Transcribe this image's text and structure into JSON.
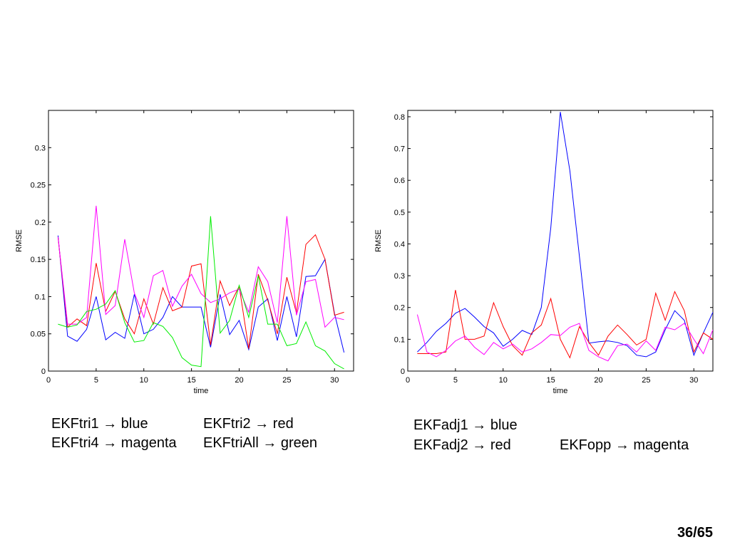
{
  "chart_data": [
    {
      "type": "line",
      "title": "",
      "xlabel": "time",
      "ylabel": "RMSE",
      "xlim": [
        0,
        32
      ],
      "ylim": [
        0,
        0.35
      ],
      "xticks": [
        0,
        5,
        10,
        15,
        20,
        25,
        30
      ],
      "yticks": [
        0,
        0.05,
        0.1,
        0.15,
        0.2,
        0.25,
        0.3
      ],
      "xtick_labels": [
        "0",
        "5",
        "10",
        "15",
        "20",
        "25",
        "30"
      ],
      "ytick_labels": [
        "0",
        "0.05",
        "0.1",
        "0.15",
        "0.2",
        "0.25",
        "0.3"
      ],
      "grid": false,
      "legend": "none",
      "x": [
        1,
        2,
        3,
        4,
        5,
        6,
        7,
        8,
        9,
        10,
        11,
        12,
        13,
        14,
        15,
        16,
        17,
        18,
        19,
        20,
        21,
        22,
        23,
        24,
        25,
        26,
        27,
        28,
        29,
        30,
        31
      ],
      "series": [
        {
          "color": "#0000ff",
          "values": [
            0.182,
            0.047,
            0.04,
            0.056,
            0.1,
            0.042,
            0.052,
            0.044,
            0.103,
            0.05,
            0.056,
            0.072,
            0.1,
            0.086,
            0.086,
            0.086,
            0.032,
            0.103,
            0.049,
            0.068,
            0.029,
            0.086,
            0.097,
            0.041,
            0.1,
            0.046,
            0.127,
            0.128,
            0.15,
            0.077,
            0.025
          ]
        },
        {
          "color": "#ff0000",
          "values": [
            0.18,
            0.059,
            0.07,
            0.061,
            0.145,
            0.08,
            0.107,
            0.07,
            0.05,
            0.097,
            0.063,
            0.112,
            0.081,
            0.086,
            0.141,
            0.144,
            0.035,
            0.121,
            0.088,
            0.114,
            0.03,
            0.13,
            0.095,
            0.05,
            0.126,
            0.078,
            0.17,
            0.183,
            0.15,
            0.075,
            0.079
          ]
        },
        {
          "color": "#ff00ff",
          "values": [
            0.18,
            0.063,
            0.063,
            0.072,
            0.222,
            0.076,
            0.088,
            0.177,
            0.105,
            0.072,
            0.128,
            0.135,
            0.087,
            0.114,
            0.13,
            0.104,
            0.092,
            0.097,
            0.105,
            0.11,
            0.079,
            0.14,
            0.12,
            0.065,
            0.208,
            0.075,
            0.12,
            0.123,
            0.059,
            0.072,
            0.069
          ]
        },
        {
          "color": "#00ee00",
          "values": [
            0.063,
            0.059,
            0.062,
            0.08,
            0.083,
            0.09,
            0.108,
            0.065,
            0.039,
            0.041,
            0.065,
            0.06,
            0.045,
            0.018,
            0.008,
            0.006,
            0.208,
            0.051,
            0.068,
            0.115,
            0.072,
            0.128,
            0.063,
            0.063,
            0.034,
            0.037,
            0.066,
            0.034,
            0.027,
            0.01,
            0.003
          ]
        }
      ]
    },
    {
      "type": "line",
      "title": "",
      "xlabel": "time",
      "ylabel": "RMSE",
      "xlim": [
        0,
        32
      ],
      "ylim": [
        0,
        0.82
      ],
      "xticks": [
        0,
        5,
        10,
        15,
        20,
        25,
        30
      ],
      "yticks": [
        0,
        0.1,
        0.2,
        0.3,
        0.4,
        0.5,
        0.6,
        0.7,
        0.8
      ],
      "xtick_labels": [
        "0",
        "5",
        "10",
        "15",
        "20",
        "25",
        "30"
      ],
      "ytick_labels": [
        "0",
        "0.1",
        "0.2",
        "0.3",
        "0.4",
        "0.5",
        "0.6",
        "0.7",
        "0.8"
      ],
      "grid": false,
      "legend": "none",
      "x": [
        1,
        2,
        3,
        4,
        5,
        6,
        7,
        8,
        9,
        10,
        11,
        12,
        13,
        14,
        15,
        16,
        17,
        18,
        19,
        20,
        21,
        22,
        23,
        24,
        25,
        26,
        27,
        28,
        29,
        30,
        31,
        32
      ],
      "series": [
        {
          "color": "#0000ff",
          "values": [
            0.06,
            0.09,
            0.125,
            0.15,
            0.182,
            0.197,
            0.17,
            0.14,
            0.12,
            0.078,
            0.1,
            0.128,
            0.115,
            0.2,
            0.45,
            0.815,
            0.63,
            0.36,
            0.088,
            0.092,
            0.095,
            0.09,
            0.08,
            0.05,
            0.045,
            0.06,
            0.13,
            0.19,
            0.16,
            0.05,
            0.12,
            0.185
          ]
        },
        {
          "color": "#ff0000",
          "values": [
            0.055,
            0.055,
            0.055,
            0.06,
            0.255,
            0.1,
            0.1,
            0.11,
            0.215,
            0.14,
            0.08,
            0.05,
            0.12,
            0.145,
            0.228,
            0.1,
            0.042,
            0.14,
            0.09,
            0.05,
            0.11,
            0.145,
            0.115,
            0.082,
            0.1,
            0.245,
            0.16,
            0.25,
            0.19,
            0.06,
            0.12,
            0.1
          ]
        },
        {
          "color": "#ff00ff",
          "values": [
            0.178,
            0.06,
            0.045,
            0.065,
            0.095,
            0.11,
            0.075,
            0.052,
            0.09,
            0.07,
            0.085,
            0.06,
            0.07,
            0.09,
            0.115,
            0.112,
            0.138,
            0.15,
            0.065,
            0.045,
            0.032,
            0.08,
            0.085,
            0.06,
            0.095,
            0.065,
            0.138,
            0.13,
            0.15,
            0.1,
            0.055,
            0.13
          ]
        }
      ]
    }
  ],
  "captions": {
    "left": {
      "row1": {
        "item1": "EKFtri1 → blue",
        "item2": "EKFtri2 → red"
      },
      "row2": {
        "item1": "EKFtri4 → magenta",
        "item2": "EKFtriAll → green"
      }
    },
    "right": {
      "row1": {
        "item1": "EKFadj1 → blue"
      },
      "row2": {
        "item1": "EKFadj2 → red",
        "item2": "EKFopp → magenta"
      }
    }
  },
  "page_number": "36/65"
}
